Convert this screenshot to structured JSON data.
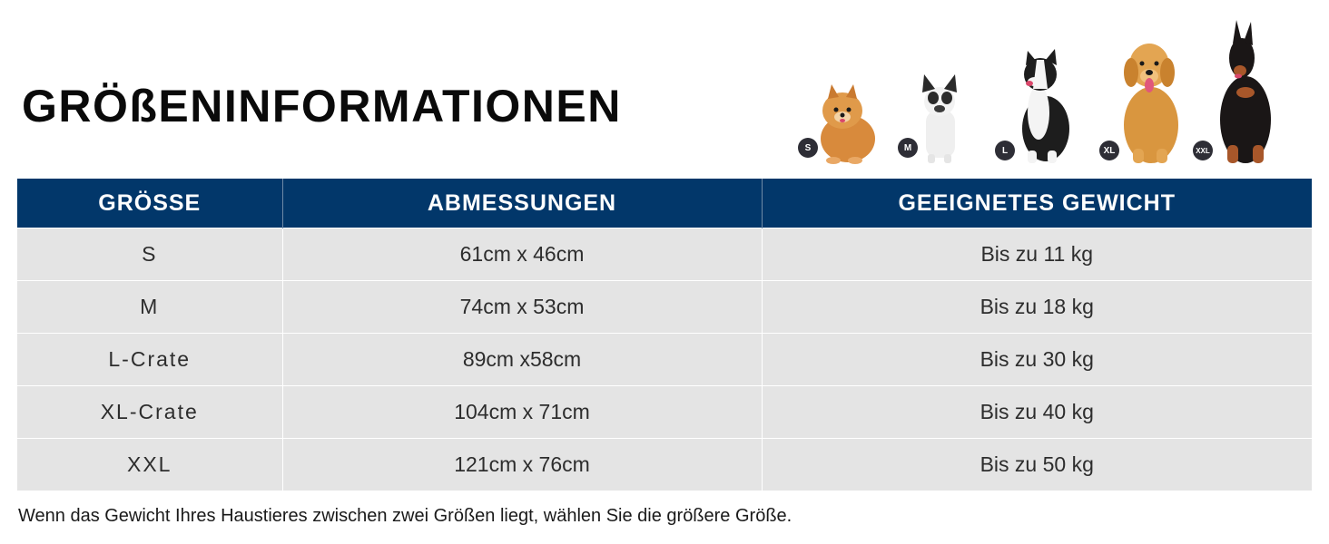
{
  "title": "GRÖßENINFORMATIONEN",
  "dogs": [
    {
      "badge": "S",
      "icon": "pomeranian-dog-icon"
    },
    {
      "badge": "M",
      "icon": "french-bulldog-icon"
    },
    {
      "badge": "L",
      "icon": "border-collie-dog-icon"
    },
    {
      "badge": "XL",
      "icon": "golden-retriever-dog-icon"
    },
    {
      "badge": "XXL",
      "icon": "doberman-dog-icon"
    }
  ],
  "table": {
    "headers": [
      "GRÖSSE",
      "ABMESSUNGEN",
      "GEEIGNETES GEWICHT"
    ],
    "rows": [
      {
        "size": "S",
        "dimensions": "61cm x 46cm",
        "weight": "Bis zu 11 kg"
      },
      {
        "size": "M",
        "dimensions": "74cm x 53cm",
        "weight": "Bis zu 18 kg"
      },
      {
        "size": "L-Crate",
        "dimensions": "89cm x58cm",
        "weight": "Bis zu 30 kg"
      },
      {
        "size": "XL-Crate",
        "dimensions": "104cm x 71cm",
        "weight": "Bis zu 40 kg"
      },
      {
        "size": "XXL",
        "dimensions": "121cm x 76cm",
        "weight": "Bis zu 50 kg"
      }
    ]
  },
  "note": "Wenn das Gewicht Ihres Haustieres zwischen zwei Größen liegt, wählen Sie die größere Größe.",
  "colors": {
    "header": "#02376a",
    "row": "#e4e4e4",
    "badge": "#2e2e36"
  }
}
